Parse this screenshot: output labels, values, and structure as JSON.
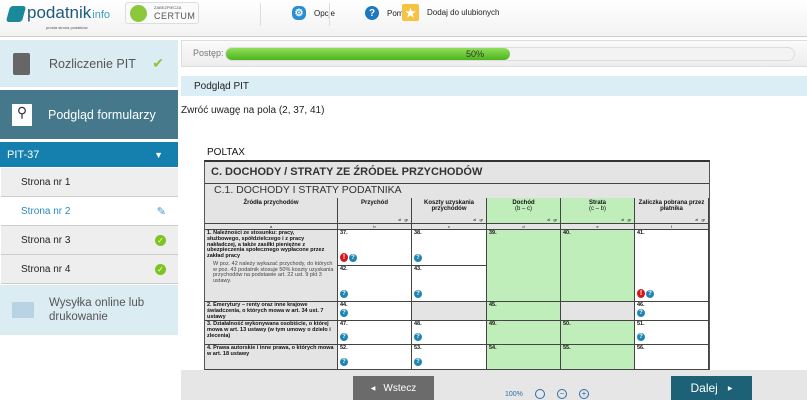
{
  "header": {
    "logo_main": "podatnik",
    "logo_suffix": "info",
    "logo_tagline": "prosta strona podatków",
    "badge_small": "ZABEZPIECZA",
    "badge": "CERTUM",
    "options": "Opcje",
    "help": "Pomoc",
    "favorite": "Dodaj do ulubionych"
  },
  "sidebar": {
    "rozliczenie": "Rozliczenie PIT",
    "podglad": "Podgląd formularzy",
    "form": "PIT-37",
    "pages": [
      {
        "label": "Strona nr 1",
        "status": "none"
      },
      {
        "label": "Strona nr 2",
        "status": "editing"
      },
      {
        "label": "Strona nr 3",
        "status": "done"
      },
      {
        "label": "Strona nr 4",
        "status": "done"
      }
    ],
    "wysylka": "Wysyłka online lub drukowanie"
  },
  "progress": {
    "label": "Postęp:",
    "value": 50,
    "text": "50%"
  },
  "panel_title": "Podgląd PIT",
  "warning": "Zwróć uwagę na pola (2, 37, 41)",
  "form": {
    "brand": "POLTAX",
    "section": "C. DOCHODY / STRATY ZE ŹRÓDEŁ PRZYCHODÓW",
    "subsection": "C.1. DOCHODY I STRATY PODATNIKA",
    "columns": [
      {
        "title": "Źródła przychodów",
        "letter": "a"
      },
      {
        "title": "Przychód",
        "letter": "b"
      },
      {
        "title": "Koszty uzyskania przychodów",
        "letter": "c"
      },
      {
        "title": "Dochód",
        "sub": "(b – c)",
        "letter": "d"
      },
      {
        "title": "Strata",
        "sub": "(c – b)",
        "letter": "e"
      },
      {
        "title": "Zaliczka pobrana przez płatnika",
        "letter": "f"
      }
    ],
    "units": {
      "zl": "zł",
      "gr": "gr"
    },
    "rows": [
      {
        "source": "1. Należności ze stosunku: pracy, służbowego, spółdzielczego i z pracy nakładczej, a także zasiłki pieniężne z ubezpieczenia społecznego wypłacone przez zakład pracy",
        "note": "W poz. 42 należy wykazać przychody, do których w poz. 43 podatnik stosuje 50% koszty uzyskania przychodów na podstawie art. 22 ust. 9 pkt 3 ustawy."
      },
      {
        "source": "2. Emerytury – renty oraz inne krajowe świadczenia, o których mowa w art. 34 ust. 7 ustawy"
      },
      {
        "source": "3. Działalność wykonywana osobiście, o której mowa w art. 13 ustawy (w tym umowy o dzieło i zlecenia)"
      },
      {
        "source": "4. Prawa autorskie i inne prawa, o których mowa w art. 18 ustawy"
      }
    ],
    "fields": [
      "37.",
      "38.",
      "39.",
      "40.",
      "41.",
      "42.",
      "43.",
      "44.",
      "45.",
      "46.",
      "47.",
      "48.",
      "49.",
      "50.",
      "51.",
      "52.",
      "53.",
      "54.",
      "55.",
      "56."
    ]
  },
  "nav": {
    "back": "Wstecz",
    "next": "Dalej",
    "zoom": "100%"
  }
}
